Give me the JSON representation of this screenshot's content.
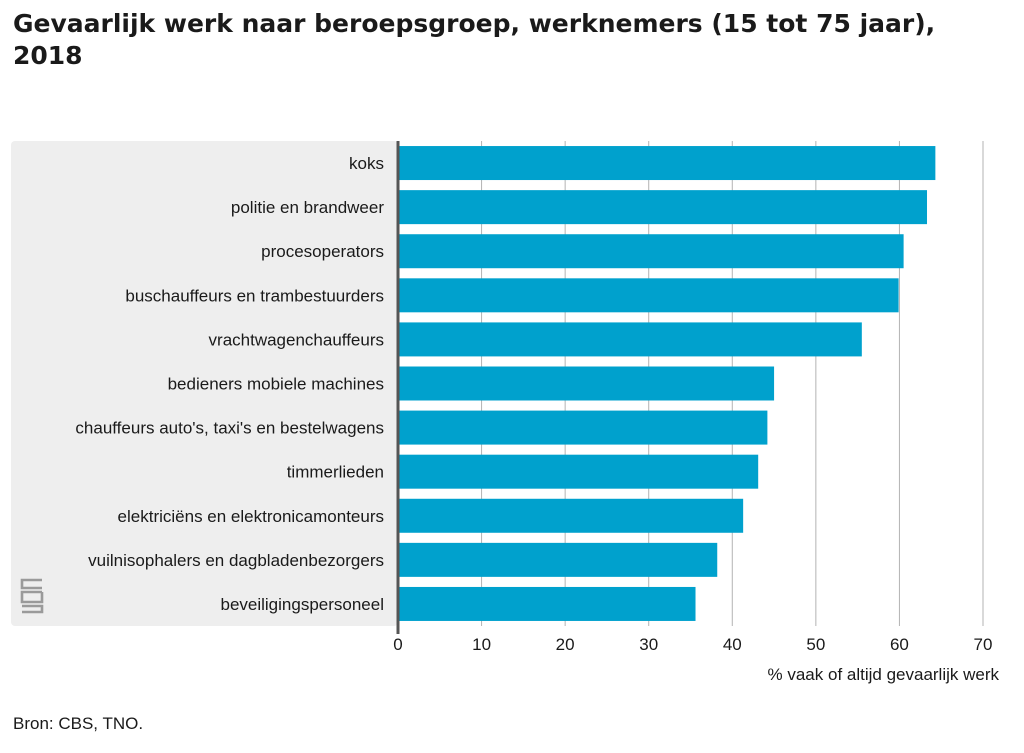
{
  "title": "Gevaarlijk werk naar beroepsgroep, werknemers (15 tot 75 jaar), 2018",
  "source": "Bron: CBS, TNO.",
  "colors": {
    "bar": "#00a1cd",
    "label_panel": "#eeeeee",
    "grid": "#b3b3b3",
    "axis": "#555555"
  },
  "chart_data": {
    "type": "bar",
    "orientation": "horizontal",
    "title": "Gevaarlijk werk naar beroepsgroep, werknemers (15 tot 75 jaar), 2018",
    "xlabel": "% vaak of altijd gevaarlijk werk",
    "ylabel": "",
    "xlim": [
      0,
      70
    ],
    "xticks": [
      0,
      10,
      20,
      30,
      40,
      50,
      60,
      70
    ],
    "grid": true,
    "categories": [
      "koks",
      "politie en brandweer",
      "procesoperators",
      "buschauffeurs en trambestuurders",
      "vrachtwagenchauffeurs",
      "bedieners mobiele machines",
      "chauffeurs auto's, taxi's en bestelwagens",
      "timmerlieden",
      "elektriciëns en elektronicamonteurs",
      "vuilnisophalers en dagbladenbezorgers",
      "beveiligingspersoneel"
    ],
    "values": [
      64.3,
      63.3,
      60.5,
      59.9,
      55.5,
      45.0,
      44.2,
      43.1,
      41.3,
      38.2,
      35.6
    ]
  }
}
